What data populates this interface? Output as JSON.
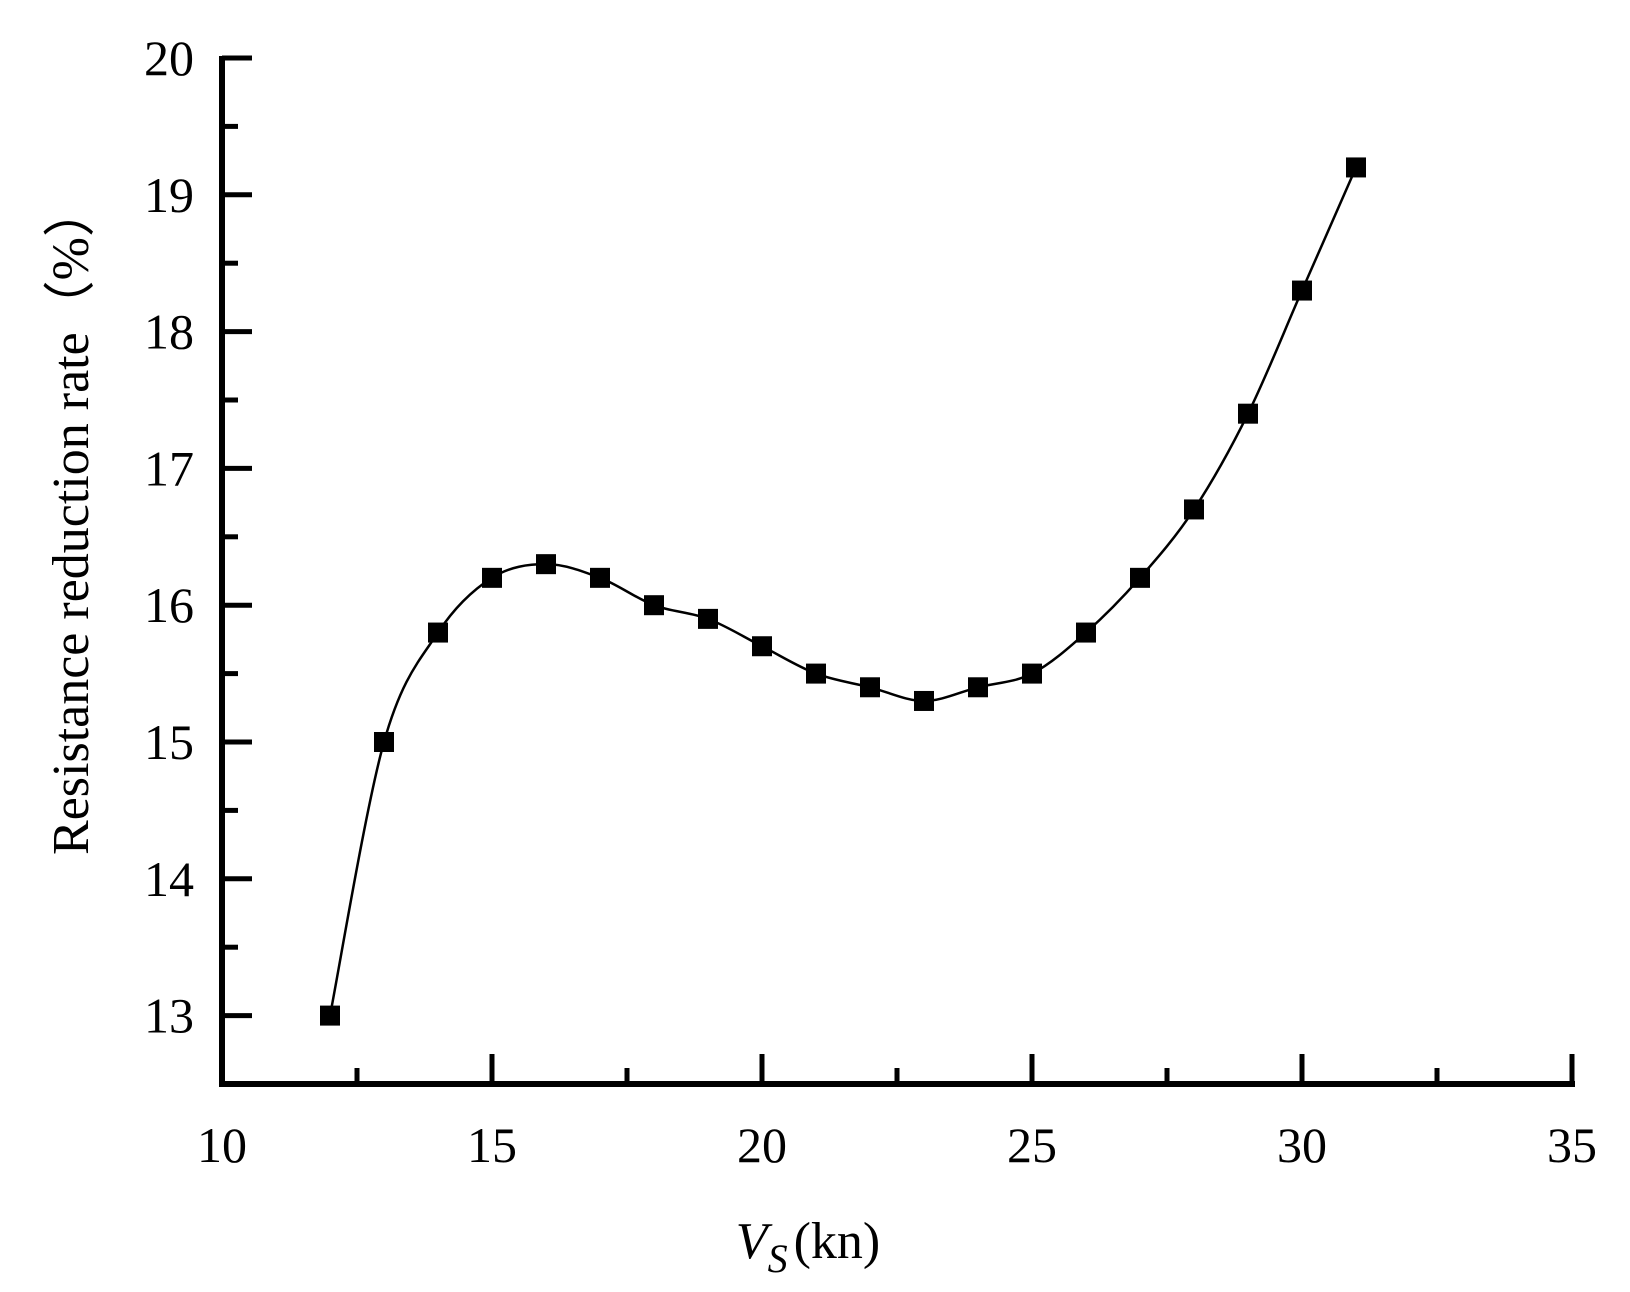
{
  "chart_data": {
    "type": "line",
    "title": "",
    "xlabel": "(kn)",
    "xlabel_symbol": "V",
    "xlabel_subscript": "S",
    "ylabel": "Resistance reduction rate（%）",
    "xlim": [
      10,
      35
    ],
    "ylim": [
      12.5,
      20
    ],
    "x_ticks": [
      "10",
      "15",
      "20",
      "25",
      "30",
      "35"
    ],
    "y_ticks": [
      "13",
      "14",
      "15",
      "16",
      "17",
      "18",
      "19",
      "20"
    ],
    "grid": false,
    "legend": "none",
    "marker": "square",
    "color": "#000000",
    "series": [
      {
        "x": [
          12,
          13,
          14,
          15,
          16,
          17,
          18,
          19,
          20,
          21,
          22,
          23,
          24,
          25,
          26,
          27,
          28,
          29,
          30,
          31
        ],
        "y": [
          13.0,
          15.0,
          15.8,
          16.2,
          16.3,
          16.2,
          16.0,
          15.9,
          15.7,
          15.5,
          15.4,
          15.3,
          15.4,
          15.5,
          15.8,
          16.2,
          16.7,
          17.4,
          18.3,
          19.2
        ]
      }
    ]
  }
}
